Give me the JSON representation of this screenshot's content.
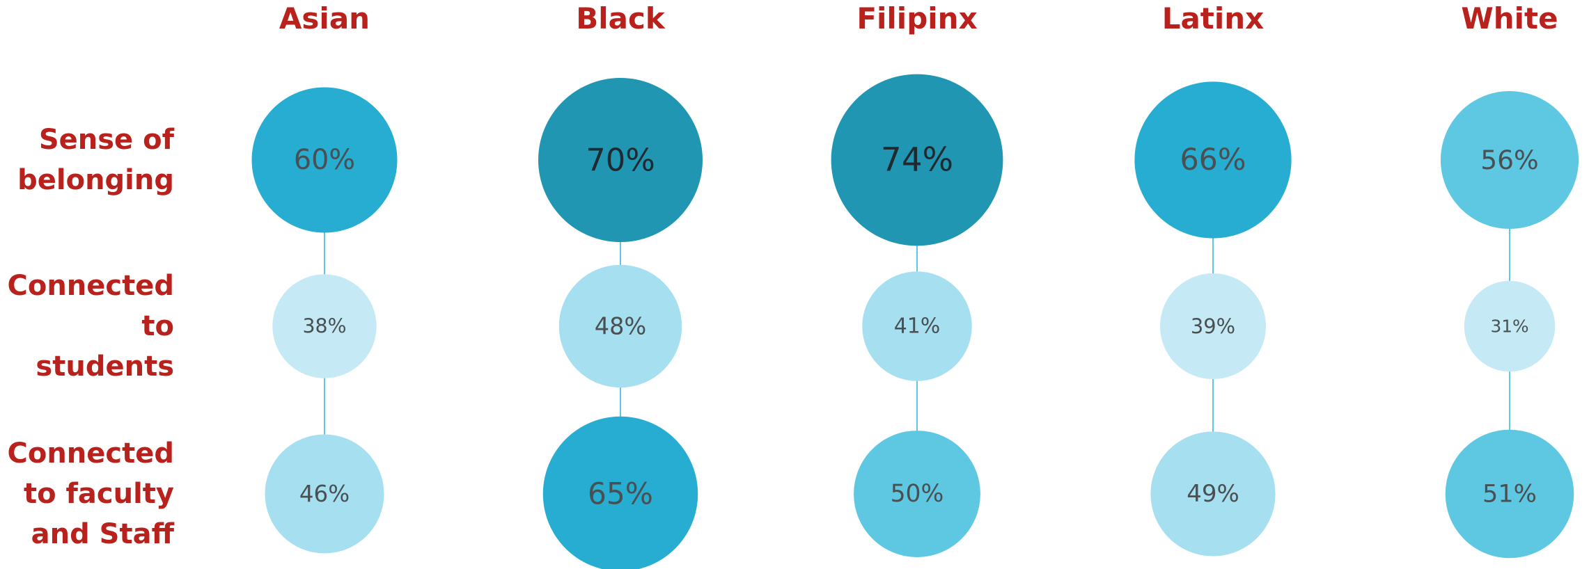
{
  "chart_data": {
    "type": "bubble",
    "categories": [
      "Asian",
      "Black",
      "Filipinx",
      "Latinx",
      "White"
    ],
    "series": [
      {
        "name": "Sense of belonging",
        "values": [
          60,
          70,
          74,
          66,
          56
        ],
        "value_labels": [
          "60%",
          "70%",
          "74%",
          "66%",
          "56%"
        ],
        "colors": [
          "#27add2",
          "#2196b3",
          "#2196b3",
          "#27add2",
          "#5ec8e3"
        ]
      },
      {
        "name": "Connected to students",
        "values": [
          38,
          48,
          41,
          39,
          31
        ],
        "value_labels": [
          "38%",
          "48%",
          "41%",
          "39%",
          "31%"
        ],
        "colors": [
          "#c5eaf5",
          "#a5dff0",
          "#a5dff0",
          "#c5eaf5",
          "#c5eaf5"
        ]
      },
      {
        "name": "Connected to faculty and Staff",
        "values": [
          46,
          65,
          50,
          49,
          51
        ],
        "value_labels": [
          "46%",
          "65%",
          "50%",
          "49%",
          "51%"
        ],
        "colors": [
          "#a5dff0",
          "#27add2",
          "#5ec8e3",
          "#a5dff0",
          "#5ec8e3"
        ]
      }
    ]
  }
}
